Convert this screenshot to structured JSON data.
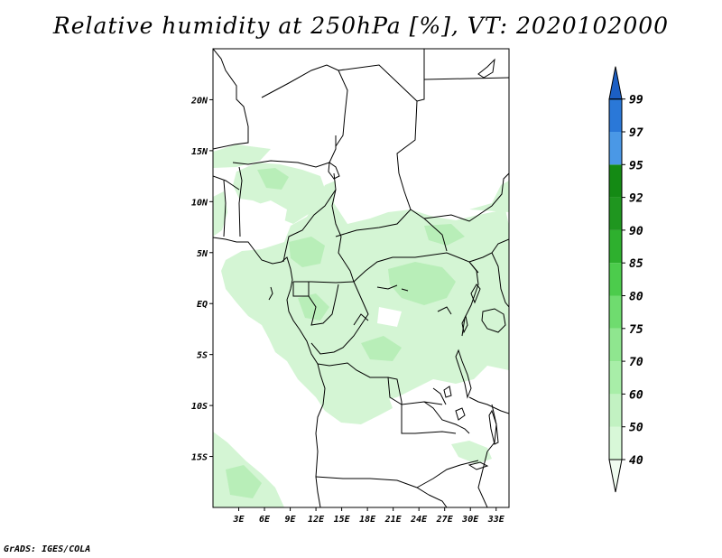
{
  "title": "Relative humidity at 250hPa [%], VT: 2020102000",
  "credit": "GrADS: IGES/COLA",
  "map": {
    "lon_range": [
      0,
      34.5
    ],
    "lat_range": [
      -20,
      25
    ],
    "lon_ticks": [
      {
        "lon": 3,
        "label": "3E"
      },
      {
        "lon": 6,
        "label": "6E"
      },
      {
        "lon": 9,
        "label": "9E"
      },
      {
        "lon": 12,
        "label": "12E"
      },
      {
        "lon": 15,
        "label": "15E"
      },
      {
        "lon": 18,
        "label": "18E"
      },
      {
        "lon": 21,
        "label": "21E"
      },
      {
        "lon": 24,
        "label": "24E"
      },
      {
        "lon": 27,
        "label": "27E"
      },
      {
        "lon": 30,
        "label": "30E"
      },
      {
        "lon": 33,
        "label": "33E"
      }
    ],
    "lat_ticks": [
      {
        "lat": 20,
        "label": "20N"
      },
      {
        "lat": 15,
        "label": "15N"
      },
      {
        "lat": 10,
        "label": "10N"
      },
      {
        "lat": 5,
        "label": "5N"
      },
      {
        "lat": 0,
        "label": "EQ"
      },
      {
        "lat": -5,
        "label": "5S"
      },
      {
        "lat": -10,
        "label": "10S"
      },
      {
        "lat": -15,
        "label": "15S"
      }
    ]
  },
  "colorbar": {
    "levels": [
      "40",
      "50",
      "60",
      "70",
      "75",
      "80",
      "85",
      "90",
      "92",
      "95",
      "97",
      "99"
    ],
    "colors": [
      "#f0fcf0",
      "#d8f8d8",
      "#c2f2c2",
      "#a8eea8",
      "#8fe68f",
      "#6fdc6f",
      "#4ccc4c",
      "#2eb02e",
      "#1f961f",
      "#148a14",
      "#4a98e6",
      "#2a78d8",
      "#1c5fc4"
    ]
  },
  "humidity_shading": {
    "color_light": "#d4f5d4",
    "color_medium": "#b8eeb8",
    "note_levels_present": [
      "40",
      "50",
      "60"
    ]
  }
}
